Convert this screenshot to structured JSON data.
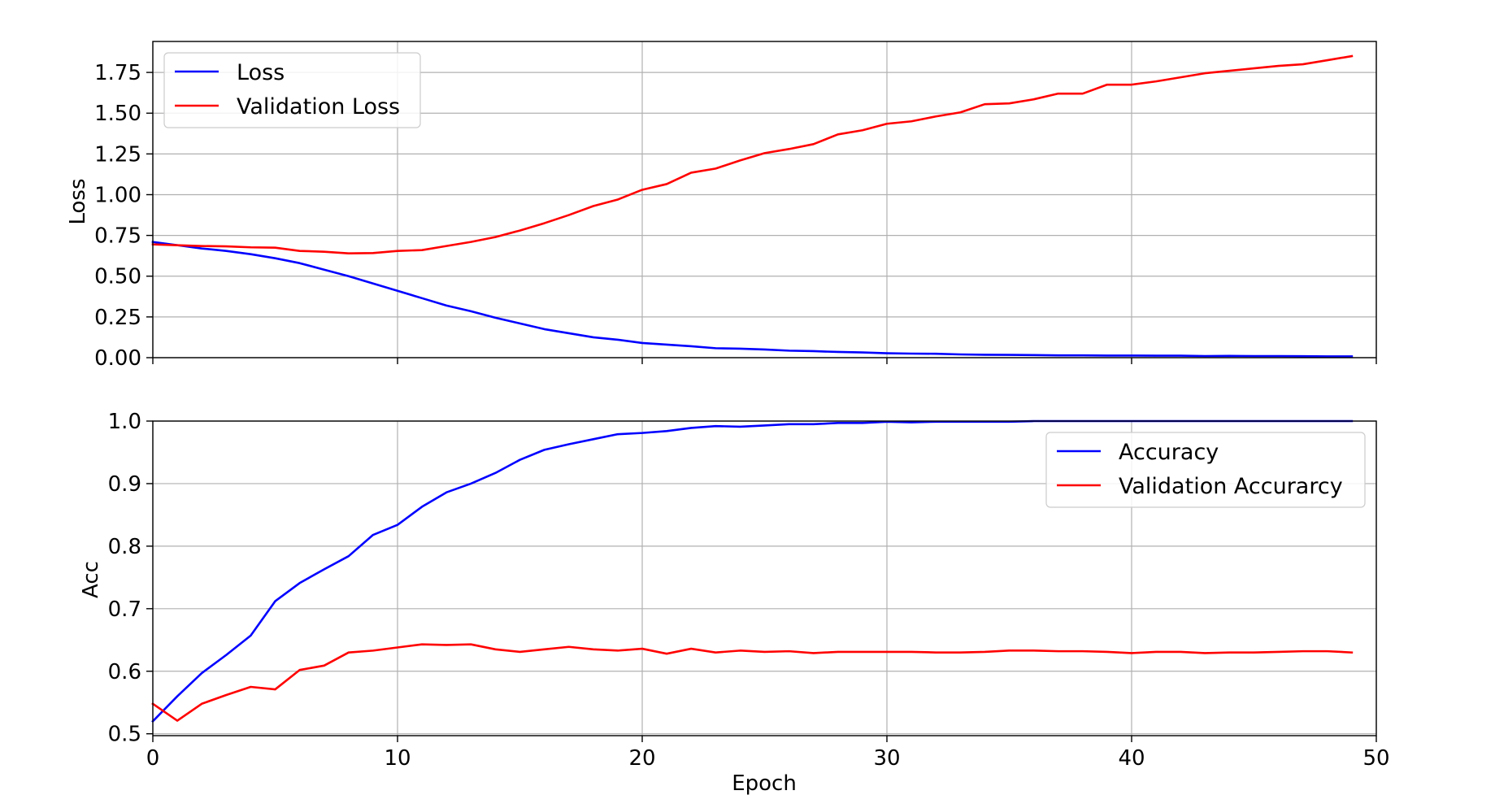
{
  "chart_data": [
    {
      "type": "line",
      "title": "",
      "xlabel": "",
      "ylabel": "Loss",
      "xlim": [
        0,
        50
      ],
      "ylim": [
        0.0,
        1.94
      ],
      "xticks": [
        0,
        10,
        20,
        30,
        40,
        50
      ],
      "yticks": [
        0.0,
        0.25,
        0.5,
        0.75,
        1.0,
        1.25,
        1.5,
        1.75
      ],
      "ytick_labels": [
        "0.00",
        "0.25",
        "0.50",
        "0.75",
        "1.00",
        "1.25",
        "1.50",
        "1.75"
      ],
      "show_xtick_labels": false,
      "grid": true,
      "legend_position": "upper-left",
      "x": [
        0,
        1,
        2,
        3,
        4,
        5,
        6,
        7,
        8,
        9,
        10,
        11,
        12,
        13,
        14,
        15,
        16,
        17,
        18,
        19,
        20,
        21,
        22,
        23,
        24,
        25,
        26,
        27,
        28,
        29,
        30,
        31,
        32,
        33,
        34,
        35,
        36,
        37,
        38,
        39,
        40,
        41,
        42,
        43,
        44,
        45,
        46,
        47,
        48,
        49
      ],
      "series": [
        {
          "name": "Loss",
          "color": "#0000ff",
          "values": [
            0.71,
            0.69,
            0.67,
            0.655,
            0.635,
            0.61,
            0.58,
            0.54,
            0.5,
            0.455,
            0.41,
            0.365,
            0.32,
            0.285,
            0.245,
            0.21,
            0.175,
            0.15,
            0.125,
            0.11,
            0.09,
            0.08,
            0.07,
            0.058,
            0.055,
            0.05,
            0.043,
            0.04,
            0.035,
            0.032,
            0.027,
            0.025,
            0.024,
            0.02,
            0.018,
            0.017,
            0.016,
            0.014,
            0.014,
            0.013,
            0.013,
            0.012,
            0.012,
            0.01,
            0.011,
            0.01,
            0.01,
            0.009,
            0.008,
            0.008
          ]
        },
        {
          "name": "Validation Loss",
          "color": "#ff0000",
          "values": [
            0.695,
            0.69,
            0.685,
            0.683,
            0.677,
            0.675,
            0.655,
            0.65,
            0.64,
            0.642,
            0.655,
            0.66,
            0.685,
            0.71,
            0.74,
            0.78,
            0.825,
            0.875,
            0.93,
            0.97,
            1.03,
            1.065,
            1.135,
            1.16,
            1.21,
            1.255,
            1.28,
            1.31,
            1.37,
            1.395,
            1.435,
            1.45,
            1.48,
            1.505,
            1.555,
            1.56,
            1.585,
            1.62,
            1.62,
            1.675,
            1.675,
            1.695,
            1.72,
            1.745,
            1.76,
            1.775,
            1.79,
            1.8,
            1.825,
            1.85
          ]
        }
      ]
    },
    {
      "type": "line",
      "title": "",
      "xlabel": "Epoch",
      "ylabel": "Acc",
      "xlim": [
        0,
        50
      ],
      "ylim": [
        0.497,
        1.0
      ],
      "xticks": [
        0,
        10,
        20,
        30,
        40,
        50
      ],
      "xtick_labels": [
        "0",
        "10",
        "20",
        "30",
        "40",
        "50"
      ],
      "yticks": [
        0.5,
        0.6,
        0.7,
        0.8,
        0.9,
        1.0
      ],
      "ytick_labels": [
        "0.5",
        "0.6",
        "0.7",
        "0.8",
        "0.9",
        "1.0"
      ],
      "show_xtick_labels": true,
      "grid": true,
      "legend_position": "upper-right",
      "x": [
        0,
        1,
        2,
        3,
        4,
        5,
        6,
        7,
        8,
        9,
        10,
        11,
        12,
        13,
        14,
        15,
        16,
        17,
        18,
        19,
        20,
        21,
        22,
        23,
        24,
        25,
        26,
        27,
        28,
        29,
        30,
        31,
        32,
        33,
        34,
        35,
        36,
        37,
        38,
        39,
        40,
        41,
        42,
        43,
        44,
        45,
        46,
        47,
        48,
        49
      ],
      "series": [
        {
          "name": "Accuracy",
          "color": "#0000ff",
          "values": [
            0.52,
            0.56,
            0.597,
            0.626,
            0.657,
            0.712,
            0.741,
            0.763,
            0.784,
            0.818,
            0.834,
            0.863,
            0.886,
            0.9,
            0.917,
            0.938,
            0.954,
            0.963,
            0.971,
            0.979,
            0.981,
            0.984,
            0.989,
            0.992,
            0.991,
            0.993,
            0.995,
            0.995,
            0.997,
            0.997,
            0.999,
            0.998,
            0.999,
            0.999,
            0.999,
            0.999,
            1.0,
            1.0,
            1.0,
            1.0,
            1.0,
            1.0,
            1.0,
            1.0,
            1.0,
            1.0,
            1.0,
            1.0,
            1.0,
            1.0
          ]
        },
        {
          "name": "Validation Accurarcy",
          "color": "#ff0000",
          "values": [
            0.548,
            0.521,
            0.548,
            0.562,
            0.575,
            0.571,
            0.602,
            0.609,
            0.63,
            0.633,
            0.638,
            0.643,
            0.642,
            0.643,
            0.635,
            0.631,
            0.635,
            0.639,
            0.635,
            0.633,
            0.636,
            0.628,
            0.636,
            0.63,
            0.633,
            0.631,
            0.632,
            0.629,
            0.631,
            0.631,
            0.631,
            0.631,
            0.63,
            0.63,
            0.631,
            0.633,
            0.633,
            0.632,
            0.632,
            0.631,
            0.629,
            0.631,
            0.631,
            0.629,
            0.63,
            0.63,
            0.631,
            0.632,
            0.632,
            0.63
          ]
        }
      ]
    }
  ]
}
